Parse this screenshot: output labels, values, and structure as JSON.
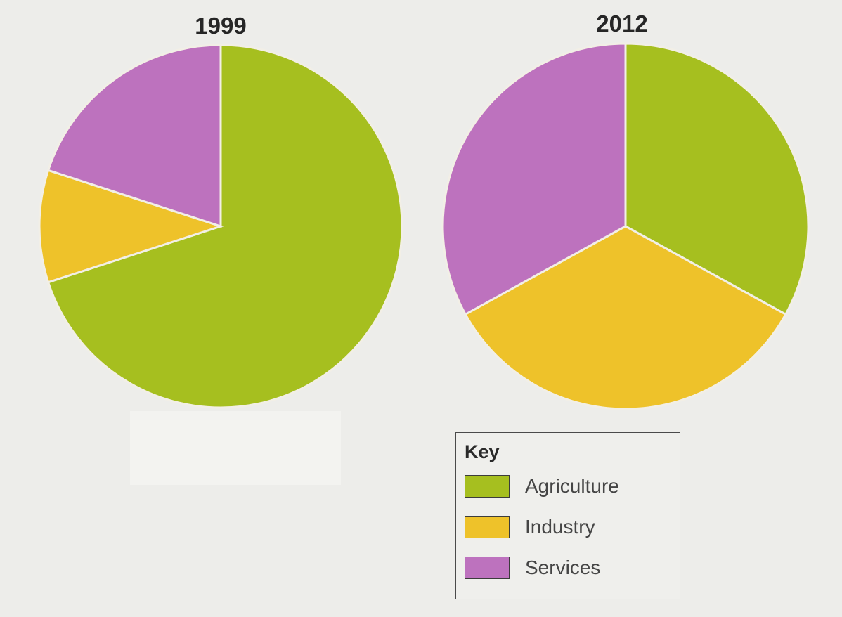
{
  "chart_data": [
    {
      "type": "pie",
      "title": "1999",
      "categories": [
        "Agriculture",
        "Industry",
        "Services"
      ],
      "values": [
        70,
        10,
        20
      ],
      "unit": "percent"
    },
    {
      "type": "pie",
      "title": "2012",
      "categories": [
        "Agriculture",
        "Industry",
        "Services"
      ],
      "values": [
        33,
        34,
        33
      ],
      "unit": "percent"
    }
  ],
  "legend": {
    "title": "Key",
    "placement": "bottom-right",
    "items": [
      {
        "label": "Agriculture",
        "color": "#a6bf1f"
      },
      {
        "label": "Industry",
        "color": "#eec22a"
      },
      {
        "label": "Services",
        "color": "#bd72be"
      }
    ]
  }
}
